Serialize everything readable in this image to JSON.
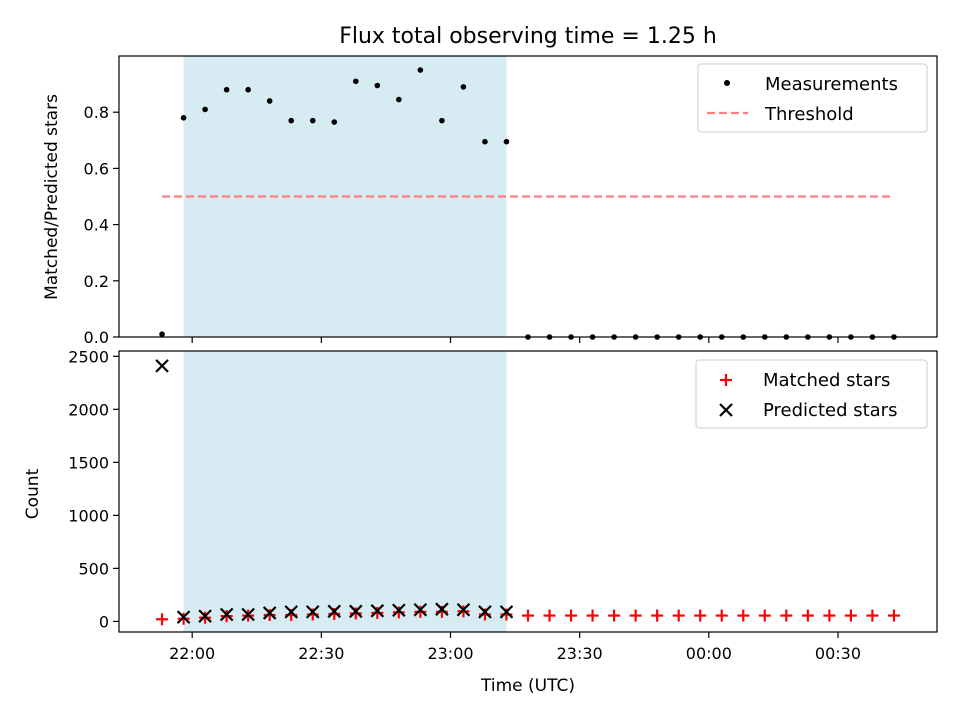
{
  "chart_data": [
    {
      "type": "scatter",
      "title": "Flux total observing time = 1.25 h",
      "ylabel": "Matched/Predicted stars",
      "xlabel": "",
      "ylim": [
        0,
        1.0
      ],
      "yticks": [
        "0.0",
        "0.2",
        "0.4",
        "0.6",
        "0.8"
      ],
      "legend_position": "top-right",
      "shaded_interval": [
        "21:58",
        "23:13"
      ],
      "shade_color": "#add8e6",
      "series": [
        {
          "name": "Measurements",
          "kind": "scatter",
          "color": "#000000",
          "x": [
            "21:53",
            "21:58",
            "22:03",
            "22:08",
            "22:13",
            "22:18",
            "22:23",
            "22:28",
            "22:33",
            "22:38",
            "22:43",
            "22:48",
            "22:53",
            "22:58",
            "23:03",
            "23:08",
            "23:13",
            "23:18",
            "23:23",
            "23:28",
            "23:33",
            "23:38",
            "23:43",
            "23:48",
            "23:53",
            "23:58",
            "00:03",
            "00:08",
            "00:13",
            "00:18",
            "00:23",
            "00:28",
            "00:33",
            "00:38",
            "00:43"
          ],
          "y": [
            0.01,
            0.78,
            0.81,
            0.88,
            0.88,
            0.84,
            0.77,
            0.77,
            0.765,
            0.91,
            0.895,
            0.845,
            0.95,
            0.77,
            0.89,
            0.695,
            0.695,
            0,
            0,
            0,
            0,
            0,
            0,
            0,
            0,
            0,
            0,
            0,
            0,
            0,
            0,
            0,
            0,
            0,
            0
          ]
        },
        {
          "name": "Threshold",
          "kind": "dashed-line",
          "color": "#ff7f7f",
          "x": [
            "21:53",
            "00:43"
          ],
          "y": [
            0.5,
            0.5
          ]
        }
      ]
    },
    {
      "type": "scatter",
      "title": "",
      "ylabel": "Count",
      "xlabel": "Time (UTC)",
      "ylim": [
        -100,
        2550
      ],
      "yticks": [
        "0",
        "500",
        "1000",
        "1500",
        "2000",
        "2500"
      ],
      "xticks": [
        "22:00",
        "22:30",
        "23:00",
        "23:30",
        "00:00",
        "00:30"
      ],
      "legend_position": "top-right",
      "shaded_interval": [
        "21:58",
        "23:13"
      ],
      "shade_color": "#add8e6",
      "series": [
        {
          "name": "Matched stars",
          "kind": "plus",
          "color": "#ff0000",
          "x": [
            "21:53",
            "21:58",
            "22:03",
            "22:08",
            "22:13",
            "22:18",
            "22:23",
            "22:28",
            "22:33",
            "22:38",
            "22:43",
            "22:48",
            "22:53",
            "22:58",
            "23:03",
            "23:08",
            "23:13",
            "23:18",
            "23:23",
            "23:28",
            "23:33",
            "23:38",
            "23:43",
            "23:48",
            "23:53",
            "23:58",
            "00:03",
            "00:08",
            "00:13",
            "00:18",
            "00:23",
            "00:28",
            "00:33",
            "00:38",
            "00:43"
          ],
          "y": [
            20,
            25,
            35,
            50,
            55,
            60,
            60,
            65,
            70,
            75,
            80,
            85,
            90,
            90,
            95,
            65,
            65,
            55,
            55,
            55,
            55,
            55,
            55,
            55,
            55,
            55,
            55,
            55,
            55,
            55,
            55,
            55,
            55,
            55,
            55
          ]
        },
        {
          "name": "Predicted stars",
          "kind": "cross",
          "color": "#000000",
          "x": [
            "21:53",
            "21:58",
            "22:03",
            "22:08",
            "22:13",
            "22:18",
            "22:23",
            "22:28",
            "22:33",
            "22:38",
            "22:43",
            "22:48",
            "22:53",
            "22:58",
            "23:03",
            "23:08",
            "23:13"
          ],
          "y": [
            2410,
            40,
            50,
            65,
            65,
            80,
            90,
            90,
            95,
            95,
            100,
            105,
            110,
            115,
            110,
            90,
            90
          ]
        }
      ]
    }
  ]
}
